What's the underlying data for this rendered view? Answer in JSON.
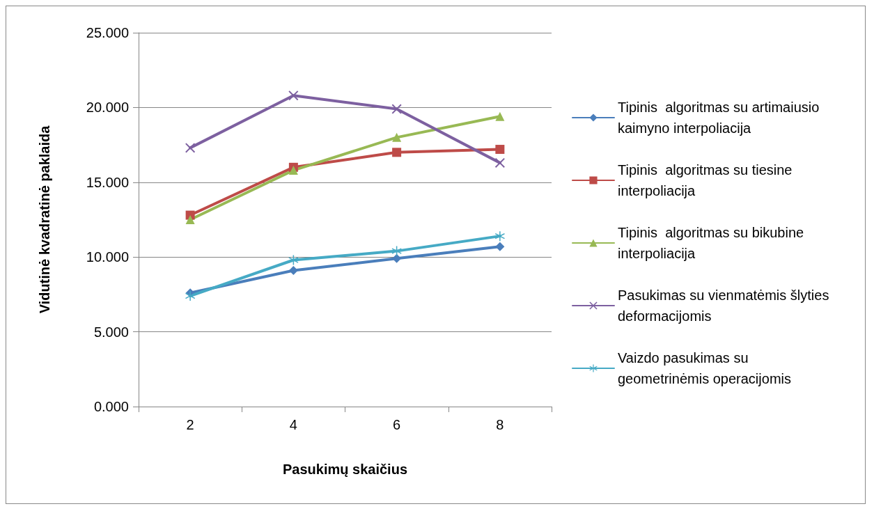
{
  "chart_data": {
    "type": "line",
    "xlabel": "Pasukimų skaičius",
    "ylabel": "Vidutinė kvadratinė paklaida",
    "categories": [
      "2",
      "4",
      "6",
      "8"
    ],
    "ylim": [
      0,
      25
    ],
    "yticks": [
      {
        "value": 0,
        "label": "0.000"
      },
      {
        "value": 5,
        "label": "5.000"
      },
      {
        "value": 10,
        "label": "10.000"
      },
      {
        "value": 15,
        "label": "15.000"
      },
      {
        "value": 20,
        "label": "20.000"
      },
      {
        "value": 25,
        "label": "25.000"
      }
    ],
    "grid": "y",
    "legend": "right",
    "line_style": "solid",
    "series": [
      {
        "name": "Tipinis  algoritmas su artimaiusio kaimyno interpoliacija",
        "color": "#4a7ebb",
        "marker": "diamond",
        "values": [
          7.6,
          9.1,
          9.9,
          10.7
        ]
      },
      {
        "name": "Tipinis  algoritmas su tiesine interpoliacija",
        "color": "#be4b48",
        "marker": "square",
        "values": [
          12.8,
          16.0,
          17.0,
          17.2
        ]
      },
      {
        "name": "Tipinis  algoritmas su bikubine interpoliacija",
        "color": "#98b954",
        "marker": "triangle",
        "values": [
          12.5,
          15.8,
          18.0,
          19.4
        ]
      },
      {
        "name": "Pasukimas su vienmatėmis šlyties deformacijomis",
        "color": "#7d60a0",
        "marker": "cross",
        "values": [
          17.3,
          20.8,
          19.9,
          16.3
        ]
      },
      {
        "name": "Vaizdo pasukimas su geometrinėmis operacijomis",
        "color": "#46aac5",
        "marker": "star",
        "values": [
          7.4,
          9.8,
          10.4,
          11.4
        ]
      }
    ]
  }
}
